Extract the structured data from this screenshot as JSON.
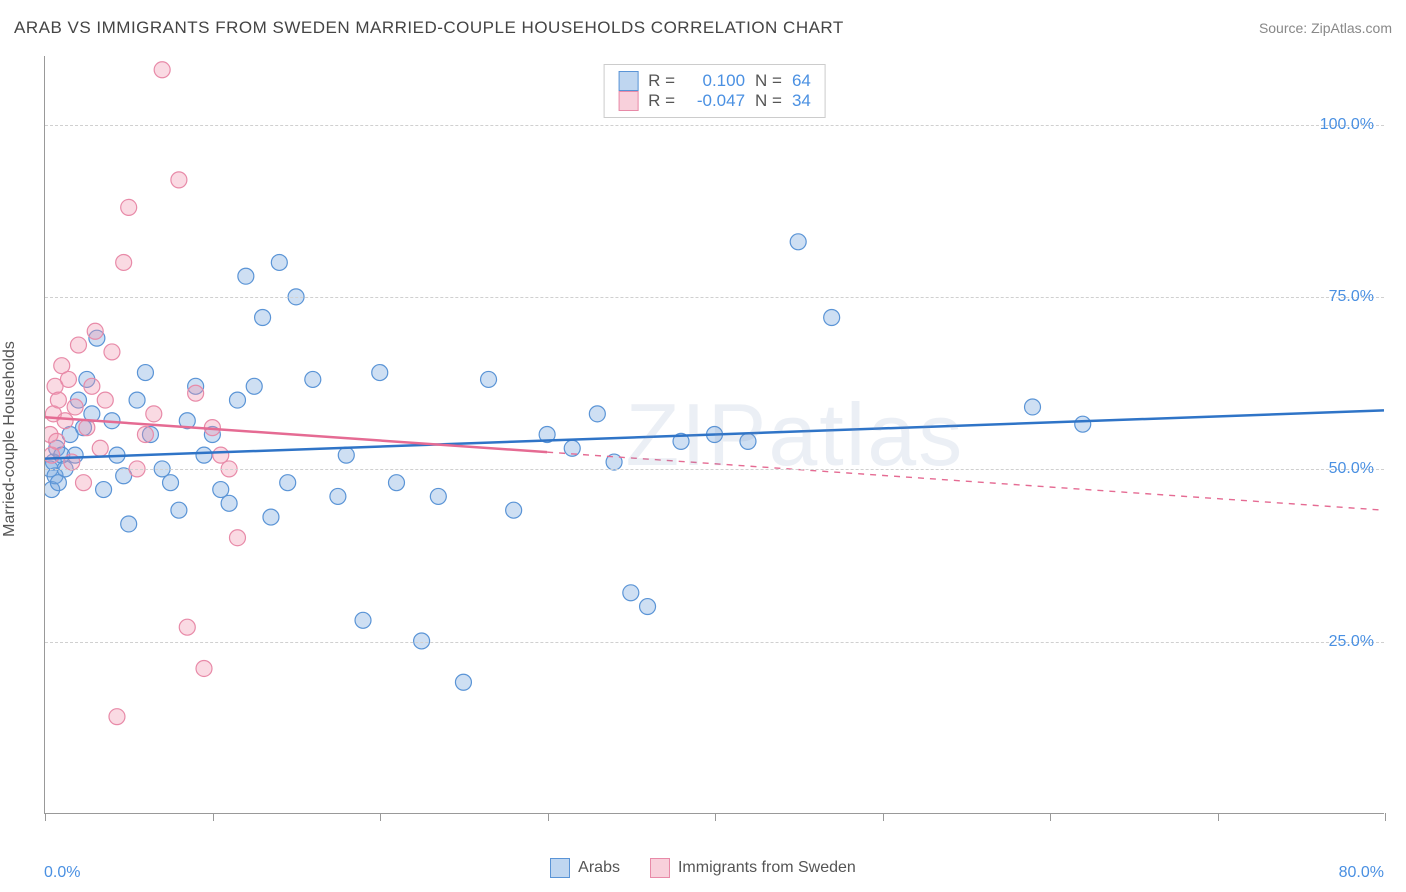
{
  "title": "ARAB VS IMMIGRANTS FROM SWEDEN MARRIED-COUPLE HOUSEHOLDS CORRELATION CHART",
  "source": "Source: ZipAtlas.com",
  "watermark": "ZIPatlas",
  "y_axis_label": "Married-couple Households",
  "chart": {
    "type": "scatter",
    "x_min": 0.0,
    "x_max": 80.0,
    "y_min": 0.0,
    "y_max": 110.0,
    "x_range_left_label": "0.0%",
    "x_range_right_label": "80.0%",
    "y_gridlines": [
      25.0,
      50.0,
      75.0,
      100.0
    ],
    "y_tick_labels": [
      "25.0%",
      "50.0%",
      "75.0%",
      "100.0%"
    ],
    "x_ticks": [
      0,
      10,
      20,
      30,
      40,
      50,
      60,
      70,
      80
    ],
    "background_color": "#ffffff",
    "grid_color": "#d0d0d0",
    "axis_color": "#999999",
    "label_color": "#4a90e2",
    "marker_radius": 8,
    "marker_stroke_width": 1.2,
    "line_width": 2.5,
    "series": [
      {
        "name": "Arabs",
        "color_fill": "rgba(114,164,222,0.35)",
        "color_stroke": "#5a94d6",
        "line_color": "#2f74c7",
        "r_value": "0.100",
        "n_value": "64",
        "regression": {
          "x1": 0,
          "y1": 51.5,
          "x2": 80,
          "y2": 58.5,
          "solid_until_x": 80
        },
        "points": [
          [
            0.3,
            50
          ],
          [
            0.4,
            47
          ],
          [
            0.6,
            49
          ],
          [
            0.5,
            51
          ],
          [
            0.7,
            53
          ],
          [
            0.8,
            48
          ],
          [
            1.0,
            52
          ],
          [
            1.2,
            50
          ],
          [
            1.5,
            55
          ],
          [
            1.8,
            52
          ],
          [
            2.0,
            60
          ],
          [
            2.3,
            56
          ],
          [
            2.5,
            63
          ],
          [
            2.8,
            58
          ],
          [
            3.1,
            69
          ],
          [
            3.5,
            47
          ],
          [
            4.0,
            57
          ],
          [
            4.3,
            52
          ],
          [
            4.7,
            49
          ],
          [
            5.0,
            42
          ],
          [
            5.5,
            60
          ],
          [
            6.0,
            64
          ],
          [
            6.3,
            55
          ],
          [
            7.0,
            50
          ],
          [
            7.5,
            48
          ],
          [
            8.0,
            44
          ],
          [
            8.5,
            57
          ],
          [
            9.0,
            62
          ],
          [
            9.5,
            52
          ],
          [
            10.0,
            55
          ],
          [
            10.5,
            47
          ],
          [
            11.0,
            45
          ],
          [
            11.5,
            60
          ],
          [
            12.0,
            78
          ],
          [
            12.5,
            62
          ],
          [
            13.0,
            72
          ],
          [
            13.5,
            43
          ],
          [
            14.0,
            80
          ],
          [
            14.5,
            48
          ],
          [
            15.0,
            75
          ],
          [
            16.0,
            63
          ],
          [
            17.5,
            46
          ],
          [
            18.0,
            52
          ],
          [
            19.0,
            28
          ],
          [
            20.0,
            64
          ],
          [
            21.0,
            48
          ],
          [
            22.5,
            25
          ],
          [
            23.5,
            46
          ],
          [
            25.0,
            19
          ],
          [
            26.5,
            63
          ],
          [
            28.0,
            44
          ],
          [
            30.0,
            55
          ],
          [
            31.5,
            53
          ],
          [
            33.0,
            58
          ],
          [
            34.0,
            51
          ],
          [
            35.0,
            32
          ],
          [
            36.0,
            30
          ],
          [
            38.0,
            54
          ],
          [
            40.0,
            55
          ],
          [
            42.0,
            54
          ],
          [
            45.0,
            83
          ],
          [
            47.0,
            72
          ],
          [
            59.0,
            59
          ],
          [
            62.0,
            56.5
          ]
        ]
      },
      {
        "name": "Immigrants from Sweden",
        "color_fill": "rgba(240,150,175,0.35)",
        "color_stroke": "#e88aa8",
        "line_color": "#e56b93",
        "r_value": "-0.047",
        "n_value": "34",
        "regression": {
          "x1": 0,
          "y1": 57.5,
          "x2": 80,
          "y2": 44.0,
          "solid_until_x": 30
        },
        "points": [
          [
            0.3,
            55
          ],
          [
            0.4,
            52
          ],
          [
            0.5,
            58
          ],
          [
            0.6,
            62
          ],
          [
            0.7,
            54
          ],
          [
            0.8,
            60
          ],
          [
            1.0,
            65
          ],
          [
            1.2,
            57
          ],
          [
            1.4,
            63
          ],
          [
            1.6,
            51
          ],
          [
            1.8,
            59
          ],
          [
            2.0,
            68
          ],
          [
            2.3,
            48
          ],
          [
            2.5,
            56
          ],
          [
            2.8,
            62
          ],
          [
            3.0,
            70
          ],
          [
            3.3,
            53
          ],
          [
            3.6,
            60
          ],
          [
            4.0,
            67
          ],
          [
            4.3,
            14
          ],
          [
            4.7,
            80
          ],
          [
            5.0,
            88
          ],
          [
            5.5,
            50
          ],
          [
            6.0,
            55
          ],
          [
            6.5,
            58
          ],
          [
            7.0,
            108
          ],
          [
            8.0,
            92
          ],
          [
            8.5,
            27
          ],
          [
            9.0,
            61
          ],
          [
            9.5,
            21
          ],
          [
            10.0,
            56
          ],
          [
            10.5,
            52
          ],
          [
            11.0,
            50
          ],
          [
            11.5,
            40
          ]
        ]
      }
    ]
  },
  "legend_bottom": [
    {
      "label": "Arabs",
      "fill": "rgba(114,164,222,0.45)",
      "stroke": "#5a94d6"
    },
    {
      "label": "Immigrants from Sweden",
      "fill": "rgba(240,150,175,0.45)",
      "stroke": "#e88aa8"
    }
  ],
  "stats_box": {
    "rows": [
      {
        "swatch_fill": "rgba(114,164,222,0.45)",
        "swatch_stroke": "#5a94d6",
        "r_label": "R =",
        "r": "0.100",
        "n_label": "N =",
        "n": "64"
      },
      {
        "swatch_fill": "rgba(240,150,175,0.45)",
        "swatch_stroke": "#e88aa8",
        "r_label": "R =",
        "r": "-0.047",
        "n_label": "N =",
        "n": "34"
      }
    ]
  }
}
